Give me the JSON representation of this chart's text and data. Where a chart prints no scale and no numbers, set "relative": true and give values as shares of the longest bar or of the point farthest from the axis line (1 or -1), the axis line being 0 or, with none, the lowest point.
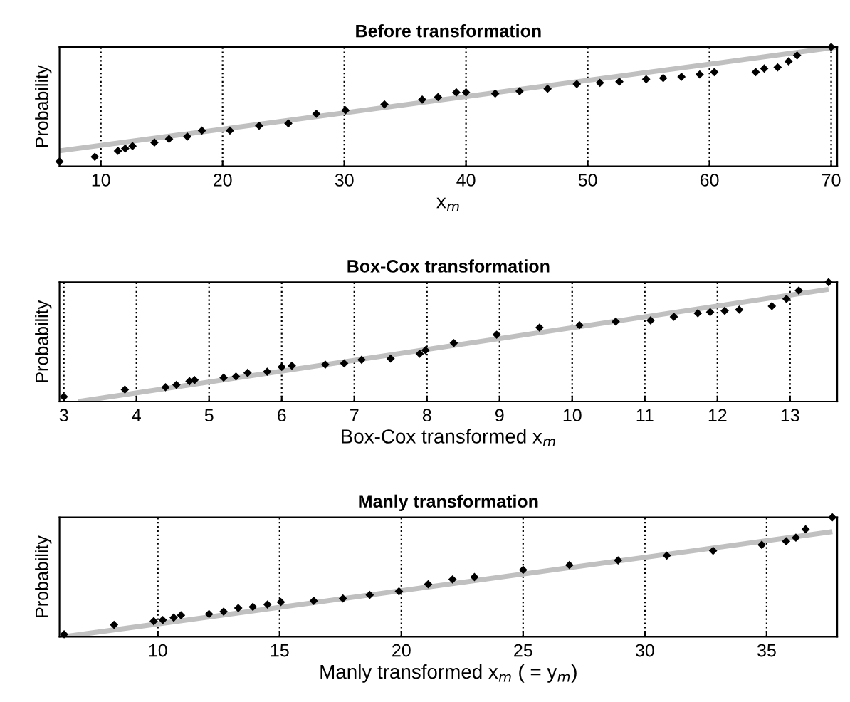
{
  "chart_data": [
    {
      "type": "scatter",
      "title": "Before transformation",
      "xlabel": "x$_{m}$",
      "ylabel": "Probability",
      "relative": true,
      "xlim": [
        6.6,
        70.5
      ],
      "xticks": [
        10,
        20,
        30,
        40,
        50,
        60,
        70
      ],
      "tick_labels": "x",
      "grid": "x",
      "series": [
        {
          "marker": "diamond",
          "color": "#000000",
          "x": [
            6.6,
            9.5,
            11.4,
            12.0,
            12.6,
            14.4,
            15.6,
            17.1,
            18.3,
            20.6,
            23.0,
            25.4,
            27.7,
            30.1,
            33.3,
            36.4,
            37.7,
            39.2,
            40.0,
            42.4,
            44.4,
            46.7,
            49.1,
            51.0,
            52.6,
            54.8,
            56.2,
            57.7,
            59.2,
            60.4,
            63.8,
            64.5,
            65.6,
            66.5,
            67.2,
            70.0
          ],
          "values": [
            0.04,
            0.08,
            0.13,
            0.15,
            0.17,
            0.2,
            0.23,
            0.25,
            0.3,
            0.3,
            0.34,
            0.36,
            0.44,
            0.47,
            0.52,
            0.56,
            0.58,
            0.62,
            0.62,
            0.61,
            0.63,
            0.65,
            0.69,
            0.7,
            0.71,
            0.73,
            0.74,
            0.75,
            0.77,
            0.79,
            0.79,
            0.82,
            0.83,
            0.88,
            0.93,
            1.0
          ]
        },
        {
          "type": "line",
          "color": "#c0c0c0",
          "x": [
            6.6,
            70.5
          ],
          "values": [
            0.13,
            1.0
          ]
        }
      ]
    },
    {
      "type": "scatter",
      "title": "Box-Cox transformation",
      "xlabel": "Box-Cox transformed x$_{m}$",
      "ylabel": "Probability",
      "relative": true,
      "xlim": [
        2.94,
        13.65
      ],
      "xticks": [
        3,
        4,
        5,
        6,
        7,
        8,
        9,
        10,
        11,
        12,
        13
      ],
      "tick_labels": "x",
      "grid": "x",
      "series": [
        {
          "marker": "diamond",
          "color": "#000000",
          "x": [
            3.0,
            3.84,
            4.4,
            4.55,
            4.73,
            4.8,
            5.2,
            5.37,
            5.53,
            5.8,
            6.0,
            6.14,
            6.6,
            6.86,
            7.1,
            7.5,
            7.9,
            7.98,
            8.37,
            8.96,
            9.55,
            10.1,
            10.6,
            11.08,
            11.4,
            11.73,
            11.9,
            12.1,
            12.3,
            12.75,
            12.95,
            13.12,
            13.53
          ],
          "values": [
            0.04,
            0.1,
            0.12,
            0.14,
            0.17,
            0.18,
            0.2,
            0.21,
            0.24,
            0.25,
            0.29,
            0.3,
            0.31,
            0.32,
            0.35,
            0.36,
            0.4,
            0.43,
            0.49,
            0.56,
            0.62,
            0.64,
            0.67,
            0.68,
            0.71,
            0.74,
            0.75,
            0.76,
            0.77,
            0.8,
            0.86,
            0.93,
            1.0
          ]
        },
        {
          "type": "line",
          "color": "#c0c0c0",
          "x": [
            3.2,
            13.53
          ],
          "values": [
            0.0,
            0.94
          ]
        }
      ]
    },
    {
      "type": "scatter",
      "title": "Manly transformation",
      "xlabel": "Manly transformed x$_{m}$ ( = y$_{m}$)",
      "ylabel": "Probability",
      "relative": true,
      "xlim": [
        5.96,
        37.9
      ],
      "xticks": [
        10,
        15,
        20,
        25,
        30,
        35
      ],
      "tick_labels": "x",
      "grid": "x",
      "series": [
        {
          "marker": "diamond",
          "color": "#000000",
          "x": [
            6.15,
            8.2,
            9.83,
            10.2,
            10.65,
            10.95,
            12.1,
            12.7,
            13.3,
            13.9,
            14.5,
            15.05,
            16.4,
            17.6,
            18.7,
            19.9,
            21.1,
            22.1,
            23.0,
            25.0,
            26.9,
            28.9,
            30.9,
            32.8,
            34.8,
            35.8,
            36.2,
            36.6,
            37.7
          ],
          "values": [
            0.02,
            0.1,
            0.13,
            0.14,
            0.16,
            0.18,
            0.19,
            0.21,
            0.24,
            0.25,
            0.27,
            0.29,
            0.3,
            0.32,
            0.35,
            0.38,
            0.44,
            0.48,
            0.5,
            0.56,
            0.6,
            0.64,
            0.68,
            0.72,
            0.77,
            0.8,
            0.83,
            0.9,
            1.0
          ]
        },
        {
          "type": "line",
          "color": "#c0c0c0",
          "x": [
            6.15,
            37.7
          ],
          "values": [
            0.0,
            0.88
          ]
        }
      ]
    }
  ]
}
